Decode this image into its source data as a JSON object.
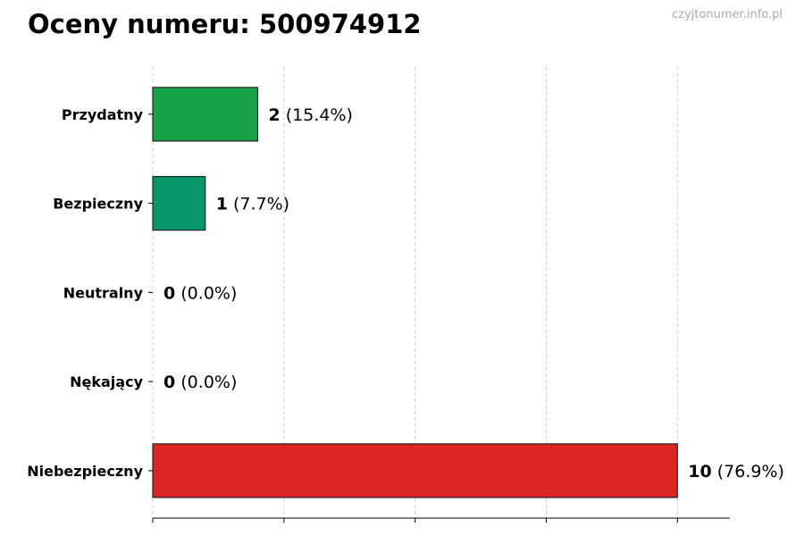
{
  "title": "Oceny numeru: 500974912",
  "watermark": "czyjtonumer.info.pl",
  "chart_data": {
    "type": "bar",
    "orientation": "horizontal",
    "title": "Oceny numeru: 500974912",
    "xlabel": "",
    "ylabel": "",
    "xlim": [
      0,
      11
    ],
    "grid": "vertical-dashed",
    "categories": [
      "Przydatny",
      "Bezpieczny",
      "Neutralny",
      "Nękający",
      "Niebezpieczny"
    ],
    "values": [
      2,
      1,
      0,
      0,
      10
    ],
    "percent_labels": [
      "(15.4%)",
      "(7.7%)",
      "(0.0%)",
      "(0.0%)",
      "(76.9%)"
    ],
    "colors": [
      "#16a34a",
      "#059669",
      "#6b7280",
      "#6b7280",
      "#dc2626"
    ]
  }
}
